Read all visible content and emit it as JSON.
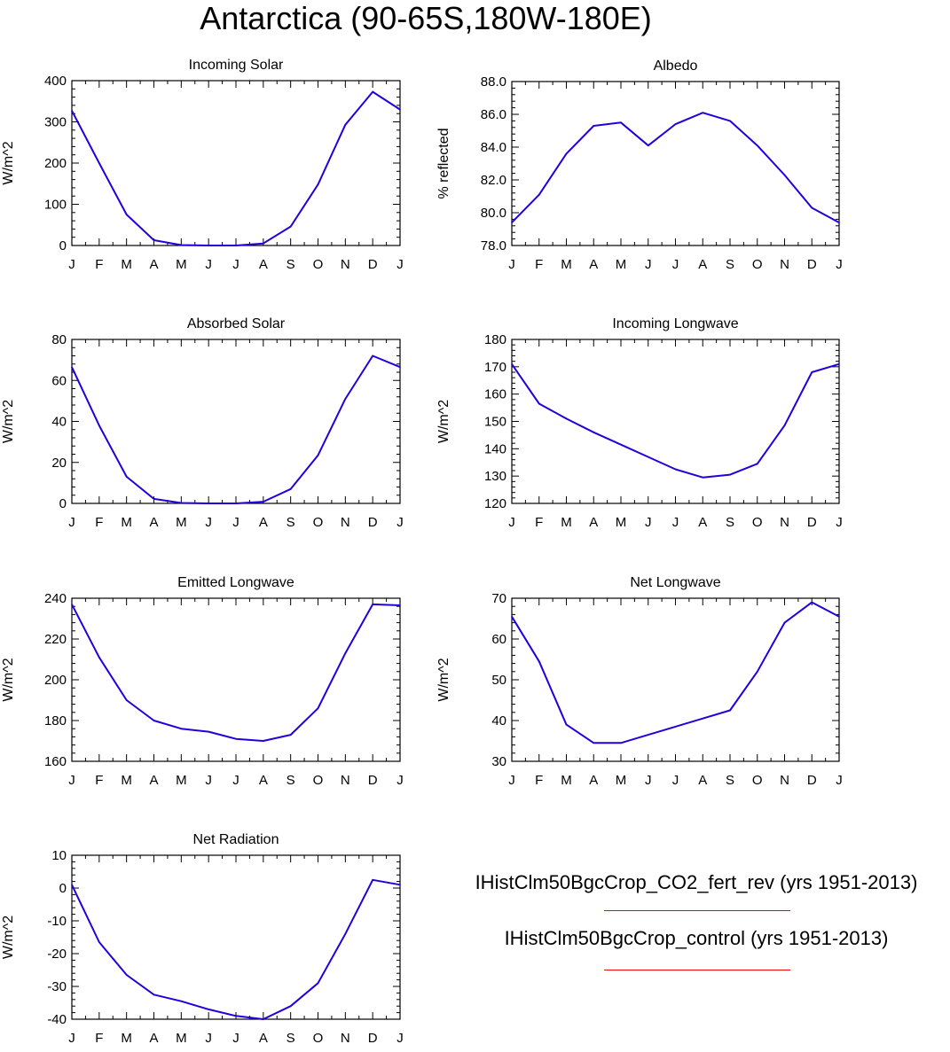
{
  "title": "Antarctica (90-65S,180W-180E)",
  "months": [
    "J",
    "F",
    "M",
    "A",
    "M",
    "J",
    "J",
    "A",
    "S",
    "O",
    "N",
    "D",
    "J"
  ],
  "legend": [
    {
      "label": "IHistClm50BgcCrop_CO2_fert_rev (yrs 1951-2013)",
      "color": "#3333ff"
    },
    {
      "label": "IHistClm50BgcCrop_control (yrs 1951-2013)",
      "color": "#ff0000"
    }
  ],
  "colors": {
    "line": "#2200dd"
  },
  "chart_data": [
    {
      "type": "line",
      "title": "Incoming Solar",
      "xlabel": "",
      "ylabel": "W/m^2",
      "ylim": [
        0,
        400
      ],
      "yticks": [
        0,
        100,
        200,
        300,
        400
      ],
      "ytick_labels": [
        "0",
        "100",
        "200",
        "300",
        "400"
      ],
      "values": [
        327,
        200,
        75,
        13,
        1,
        0,
        0,
        5,
        46,
        148,
        293,
        373,
        330
      ]
    },
    {
      "type": "line",
      "title": "Albedo",
      "xlabel": "",
      "ylabel": "% reflected",
      "ylim": [
        78,
        88
      ],
      "yticks": [
        78,
        80,
        82,
        84,
        86,
        88
      ],
      "ytick_labels": [
        "78.0",
        "80.0",
        "82.0",
        "84.0",
        "86.0",
        "88.0"
      ],
      "values": [
        79.4,
        81.1,
        83.6,
        85.3,
        85.5,
        84.1,
        85.4,
        86.1,
        85.6,
        84.1,
        82.3,
        80.3,
        79.4
      ]
    },
    {
      "type": "line",
      "title": "Absorbed Solar",
      "xlabel": "",
      "ylabel": "W/m^2",
      "ylim": [
        0,
        80
      ],
      "yticks": [
        0,
        20,
        40,
        60,
        80
      ],
      "ytick_labels": [
        "0",
        "20",
        "40",
        "60",
        "80"
      ],
      "values": [
        66.5,
        38,
        13,
        2.2,
        0.2,
        0,
        0,
        0.8,
        7,
        23.5,
        51,
        72,
        66.5
      ]
    },
    {
      "type": "line",
      "title": "Incoming Longwave",
      "xlabel": "",
      "ylabel": "W/m^2",
      "ylim": [
        120,
        180
      ],
      "yticks": [
        120,
        130,
        140,
        150,
        160,
        170,
        180
      ],
      "ytick_labels": [
        "120",
        "130",
        "140",
        "150",
        "160",
        "170",
        "180"
      ],
      "values": [
        171,
        156.5,
        151,
        146,
        141.5,
        137,
        132.5,
        129.5,
        130.5,
        134.5,
        148.5,
        168,
        171
      ]
    },
    {
      "type": "line",
      "title": "Emitted Longwave",
      "xlabel": "",
      "ylabel": "W/m^2",
      "ylim": [
        160,
        240
      ],
      "yticks": [
        160,
        180,
        200,
        220,
        240
      ],
      "ytick_labels": [
        "160",
        "180",
        "200",
        "220",
        "240"
      ],
      "values": [
        237,
        211,
        190,
        180,
        176,
        174.5,
        171,
        170,
        173,
        186,
        213,
        237,
        236.5
      ]
    },
    {
      "type": "line",
      "title": "Net Longwave",
      "xlabel": "",
      "ylabel": "W/m^2",
      "ylim": [
        30,
        70
      ],
      "yticks": [
        30,
        40,
        50,
        60,
        70
      ],
      "ytick_labels": [
        "30",
        "40",
        "50",
        "60",
        "70"
      ],
      "values": [
        65.5,
        54.5,
        39,
        34.5,
        34.5,
        36.5,
        38.5,
        40.5,
        42.5,
        52,
        64,
        69,
        65.5
      ]
    },
    {
      "type": "line",
      "title": "Net Radiation",
      "xlabel": "",
      "ylabel": "W/m^2",
      "ylim": [
        -40,
        10
      ],
      "yticks": [
        -40,
        -30,
        -20,
        -10,
        0,
        10
      ],
      "ytick_labels": [
        "-40",
        "-30",
        "-20",
        "-10",
        "0",
        "10"
      ],
      "values": [
        1,
        -16.5,
        -26.5,
        -32.5,
        -34.5,
        -37,
        -39,
        -40,
        -36,
        -29,
        -14,
        2.5,
        1
      ]
    }
  ]
}
